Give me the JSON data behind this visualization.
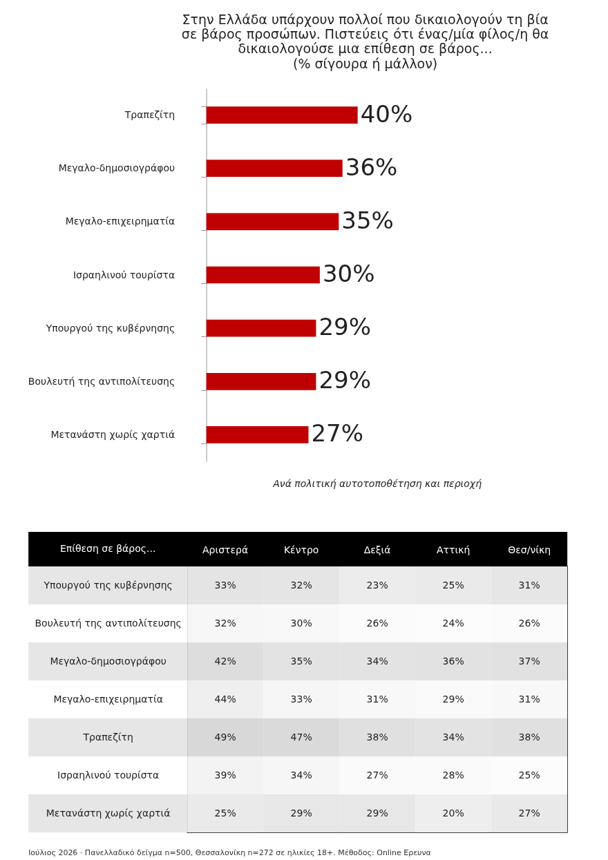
{
  "chart_data": [
    {
      "type": "bar",
      "orientation": "horizontal",
      "title": "Στην Ελλάδα υπάρχουν πολλοί που δικαιολογούν τη βία\nσε βάρος προσώπων. Πιστεύεις ότι ένας/μία φίλος/η θα\nδικαιολογούσε μια επίθεση σε βάρος...",
      "subtitle": "(% σίγουρα ή μάλλον)",
      "categories": [
        "Τραπεζίτη",
        "Μεγαλο-δημοσιογράφου",
        "Μεγαλο-επιχειρηματία",
        "Ισραηλινού τουρίστα",
        "Υπουργού της κυβέρνησης",
        "Βουλευτή της αντιπολίτευσης",
        "Μετανάστη χωρίς χαρτιά"
      ],
      "values": [
        40,
        36,
        35,
        30,
        29,
        29,
        27
      ],
      "value_labels": [
        "40%",
        "36%",
        "35%",
        "30%",
        "29%",
        "29%",
        "27%"
      ],
      "color": "#c00000"
    },
    {
      "type": "heatmap",
      "title": "Ανά πολιτική αυτοτοποθέτηση και περιοχή",
      "ylabel": "Επίθεση σε βάρος...",
      "categories": [
        "Αριστερά",
        "Κέντρο",
        "Δεξιά",
        "Αττική",
        "Θεσ/νίκη"
      ],
      "y_categories": [
        "Υπουργού της κυβέρνησης",
        "Βουλευτή της αντιπολίτευσης",
        "Μεγαλο-δημοσιογράφου",
        "Μεγαλο-επιχειρηματία",
        "Τραπεζίτη",
        "Ισραηλινού τουρίστα",
        "Μετανάστη χωρίς χαρτιά"
      ],
      "cells": [
        [
          33,
          32,
          23,
          25,
          31
        ],
        [
          32,
          30,
          26,
          24,
          26
        ],
        [
          42,
          35,
          34,
          36,
          37
        ],
        [
          44,
          33,
          31,
          29,
          31
        ],
        [
          49,
          47,
          38,
          34,
          38
        ],
        [
          39,
          34,
          27,
          28,
          25
        ],
        [
          25,
          29,
          29,
          20,
          27
        ]
      ],
      "cell_labels": [
        [
          "33%",
          "32%",
          "23%",
          "25%",
          "31%"
        ],
        [
          "32%",
          "30%",
          "26%",
          "24%",
          "26%"
        ],
        [
          "42%",
          "35%",
          "34%",
          "36%",
          "37%"
        ],
        [
          "44%",
          "33%",
          "31%",
          "29%",
          "31%"
        ],
        [
          "49%",
          "47%",
          "38%",
          "34%",
          "38%"
        ],
        [
          "39%",
          "34%",
          "27%",
          "28%",
          "25%"
        ],
        [
          "25%",
          "29%",
          "29%",
          "20%",
          "27%"
        ]
      ],
      "annotations": [
        "Ιούλιος 2026 · Πανελλαδικό δείγμα n=500, Θεσσαλονίκη n=272 σε ηλικίες 18+. Μέθοδος: Online Ερευνα"
      ]
    }
  ]
}
